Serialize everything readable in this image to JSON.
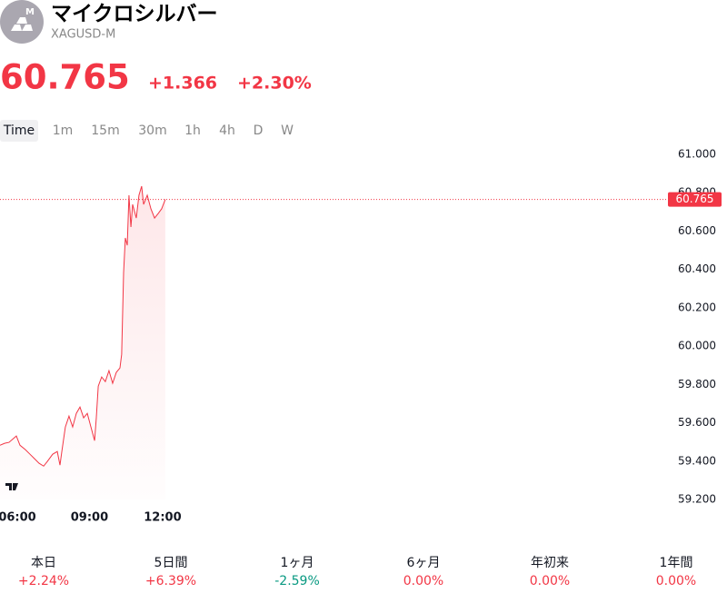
{
  "header": {
    "badge": "M",
    "title": "マイクロシルバー",
    "symbol": "XAGUSD-M"
  },
  "quote": {
    "price": "60.765",
    "change": "+1.366",
    "change_pct": "+2.30%"
  },
  "tabs": [
    "Time",
    "1m",
    "15m",
    "30m",
    "1h",
    "4h",
    "D",
    "W"
  ],
  "chart_data": {
    "type": "line",
    "color": "#f23645",
    "x": [
      5.33,
      5.52,
      5.7,
      6.0,
      6.15,
      6.37,
      6.56,
      6.75,
      6.93,
      7.12,
      7.27,
      7.49,
      7.68,
      7.79,
      7.86,
      8.01,
      8.16,
      8.31,
      8.46,
      8.61,
      8.76,
      8.91,
      9.06,
      9.21,
      9.28,
      9.36,
      9.5,
      9.65,
      9.8,
      9.95,
      10.1,
      10.25,
      10.32,
      10.4,
      10.47,
      10.55,
      10.62,
      10.7,
      10.77,
      10.92,
      11.03,
      11.14,
      11.22,
      11.37,
      11.52,
      11.67,
      11.82,
      11.96,
      12.11
    ],
    "values": [
      59.483,
      59.493,
      59.498,
      59.531,
      59.483,
      59.46,
      59.436,
      59.412,
      59.389,
      59.374,
      59.398,
      59.436,
      59.45,
      59.379,
      59.445,
      59.578,
      59.635,
      59.578,
      59.649,
      59.682,
      59.626,
      59.649,
      59.578,
      59.507,
      59.626,
      59.791,
      59.839,
      59.815,
      59.872,
      59.806,
      59.863,
      59.886,
      59.957,
      60.384,
      60.564,
      60.526,
      60.787,
      60.621,
      60.739,
      60.668,
      60.787,
      60.834,
      60.739,
      60.787,
      60.716,
      60.668,
      60.692,
      60.716,
      60.765
    ],
    "xlim": [
      5.33,
      32.54
    ],
    "xticks": [
      {
        "value": 6,
        "label": "06:00"
      },
      {
        "value": 9,
        "label": "09:00"
      },
      {
        "value": 12,
        "label": "12:00"
      }
    ],
    "ylim": [
      59.2,
      61.0
    ],
    "yticks": [
      {
        "value": 59.2,
        "label": "59.200"
      },
      {
        "value": 59.4,
        "label": "59.400"
      },
      {
        "value": 59.6,
        "label": "59.600"
      },
      {
        "value": 59.8,
        "label": "59.800"
      },
      {
        "value": 60.0,
        "label": "60.000"
      },
      {
        "value": 60.2,
        "label": "60.200"
      },
      {
        "value": 60.4,
        "label": "60.400"
      },
      {
        "value": 60.6,
        "label": "60.600"
      },
      {
        "value": 60.8,
        "label": "60.800"
      },
      {
        "value": 61.0,
        "label": "61.000"
      }
    ],
    "last_price": {
      "value": 60.765,
      "label": "60.765"
    }
  },
  "stats": [
    {
      "label": "本日",
      "value": "+2.24%",
      "color": "#f23645"
    },
    {
      "label": "5日間",
      "value": "+6.39%",
      "color": "#f23645"
    },
    {
      "label": "1ヶ月",
      "value": "-2.59%",
      "color": "#089981"
    },
    {
      "label": "6ヶ月",
      "value": "0.00%",
      "color": "#f23645"
    },
    {
      "label": "年初来",
      "value": "0.00%",
      "color": "#f23645"
    },
    {
      "label": "1年間",
      "value": "0.00%",
      "color": "#f23645"
    }
  ]
}
